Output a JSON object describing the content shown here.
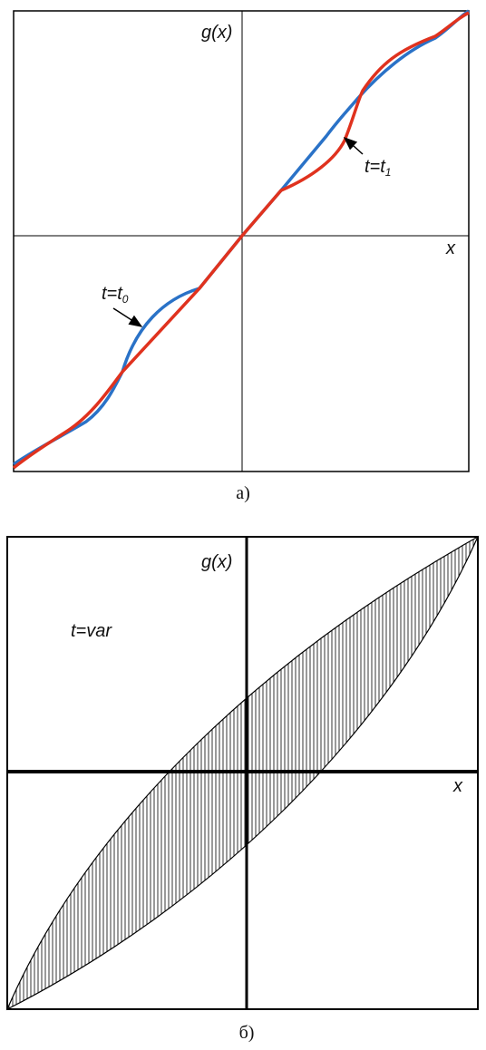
{
  "panel_a": {
    "y_label": "g(x)",
    "x_label": "x",
    "curve_t0_label": "t=t",
    "curve_t0_sub": "0",
    "curve_t1_label": "t=t",
    "curve_t1_sub": "1",
    "caption": "а)"
  },
  "panel_b": {
    "y_label": "g(x)",
    "x_label": "x",
    "annotation": "t=var",
    "caption": "б)"
  }
}
